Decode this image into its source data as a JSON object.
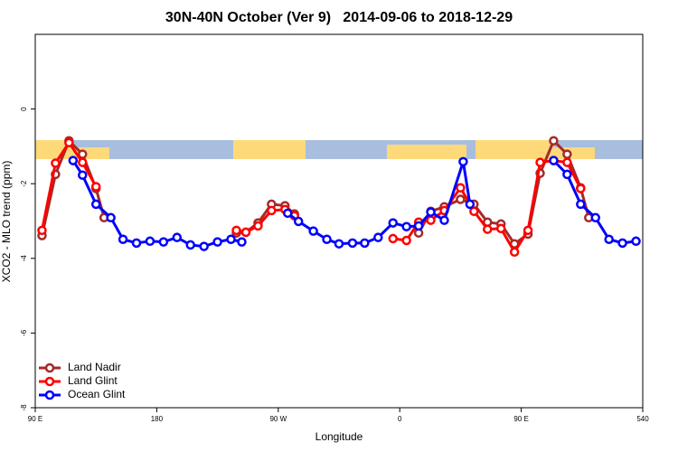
{
  "chart_data": {
    "type": "line",
    "title": "30N-40N October (Ver 9)   2014-09-06 to 2018-12-29",
    "x_label": "Longitude",
    "y_label": "XCO2 - MLO trend (ppm)",
    "xlim": [
      90,
      540
    ],
    "ylim": [
      -8,
      2
    ],
    "xticks": [
      {
        "value": 90,
        "label": "90 E"
      },
      180,
      {
        "value": 270,
        "label": "90 W"
      },
      {
        "value": 360,
        "label": "0"
      },
      {
        "value": 450,
        "label": "90 E"
      },
      540
    ],
    "yticks": [
      0,
      -2,
      -4,
      -6,
      -8
    ],
    "legend": "bottom-left",
    "series": [
      {
        "name": "Land Nadir",
        "color": "#a52a2a",
        "x": [
          95,
          105,
          115,
          125,
          135,
          141,
          null,
          239,
          246,
          255,
          265,
          275,
          282,
          null,
          374,
          383,
          393,
          405,
          415,
          425,
          435,
          445,
          455,
          464,
          474,
          484,
          494,
          500
        ],
        "values": [
          -3.39,
          -1.75,
          -0.85,
          -1.21,
          -2.13,
          -2.91,
          null,
          -3.32,
          -3.3,
          -3.05,
          -2.55,
          -2.59,
          -2.81,
          null,
          -3.32,
          -2.74,
          -2.62,
          -2.42,
          -2.55,
          -3.03,
          -3.08,
          -3.61,
          -3.35,
          -1.72,
          -0.85,
          -1.21,
          -2.11,
          -2.91
        ]
      },
      {
        "name": "Land Glint",
        "color": "#ff0000",
        "x": [
          95,
          105,
          115,
          125,
          135,
          null,
          239,
          246,
          255,
          265,
          275,
          282,
          null,
          355,
          365,
          374,
          383,
          393,
          405,
          415,
          425,
          435,
          445,
          455,
          464,
          474,
          484,
          494
        ],
        "values": [
          -3.25,
          -1.45,
          -0.9,
          -1.43,
          -2.08,
          null,
          -3.25,
          -3.3,
          -3.13,
          -2.72,
          -2.69,
          -2.86,
          null,
          -3.47,
          -3.52,
          -3.03,
          -2.98,
          -2.72,
          -2.11,
          -2.74,
          -3.22,
          -3.2,
          -3.83,
          -3.25,
          -1.43,
          -1.38,
          -1.43,
          -2.13
        ]
      },
      {
        "name": "Ocean Glint",
        "color": "#0000ff",
        "x": [
          118,
          125,
          135,
          146,
          155,
          165,
          175,
          185,
          195,
          205,
          215,
          225,
          235,
          243,
          null,
          277,
          285,
          296,
          306,
          315,
          325,
          334,
          344,
          355,
          365,
          374,
          383,
          393,
          407,
          412,
          null,
          474,
          484,
          494,
          505,
          515,
          525,
          535
        ],
        "values": [
          -1.38,
          -1.77,
          -2.55,
          -2.91,
          -3.49,
          -3.59,
          -3.54,
          -3.56,
          -3.44,
          -3.64,
          -3.68,
          -3.56,
          -3.49,
          -3.56,
          null,
          -2.79,
          -3.01,
          -3.27,
          -3.49,
          -3.61,
          -3.59,
          -3.59,
          -3.44,
          -3.05,
          -3.15,
          -3.13,
          -2.76,
          -2.98,
          -1.41,
          -2.55,
          null,
          -1.38,
          -1.75,
          -2.55,
          -2.91,
          -3.49,
          -3.59,
          -3.54
        ]
      }
    ]
  }
}
